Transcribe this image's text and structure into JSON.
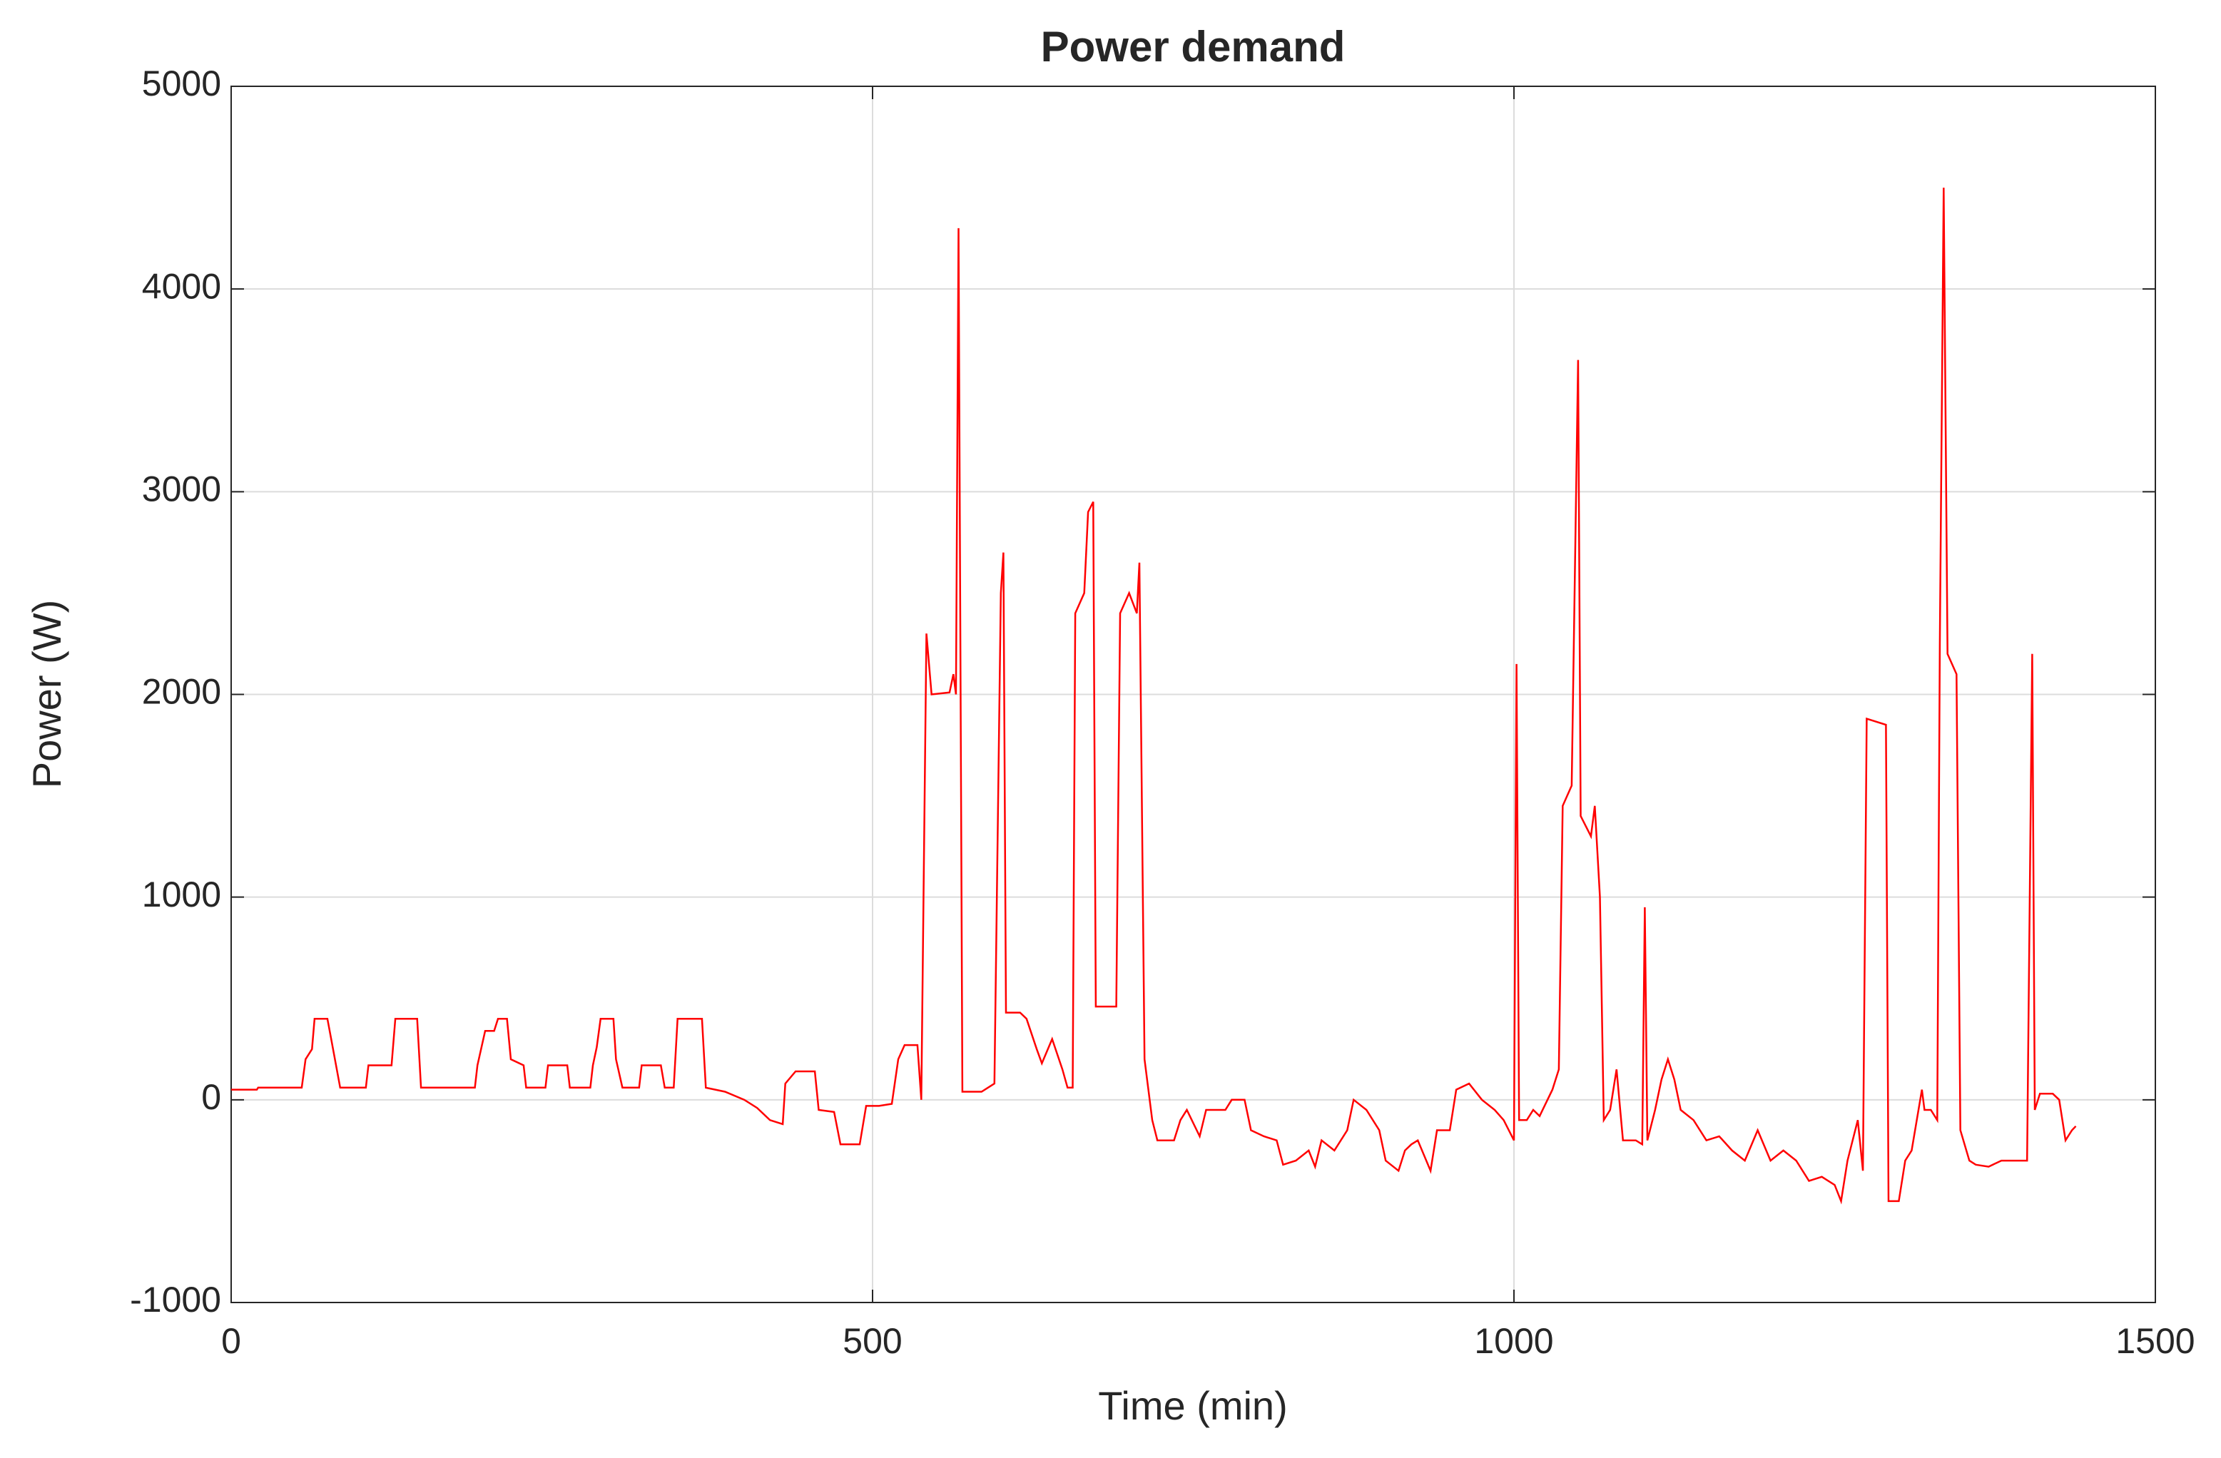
{
  "chart_data": {
    "type": "line",
    "title": "Power demand",
    "x_label": "Time (min)",
    "y_label": "Power (W)",
    "color": "#ff0000",
    "grid": true,
    "xlim": [
      0,
      1500
    ],
    "xticks": [
      0,
      500,
      1000,
      1500
    ],
    "ylim": [
      -1000,
      5000
    ],
    "yticks": [
      -1000,
      0,
      1000,
      2000,
      3000,
      4000,
      5000
    ],
    "x": [
      0,
      20,
      21,
      55,
      58,
      63,
      65,
      75,
      78,
      85,
      105,
      107,
      125,
      128,
      145,
      148,
      190,
      192,
      198,
      205,
      208,
      215,
      218,
      228,
      230,
      245,
      247,
      262,
      264,
      280,
      282,
      285,
      288,
      298,
      300,
      305,
      318,
      320,
      335,
      338,
      345,
      348,
      367,
      370,
      385,
      400,
      410,
      420,
      430,
      432,
      440,
      455,
      458,
      470,
      475,
      490,
      495,
      505,
      515,
      520,
      525,
      535,
      538,
      542,
      546,
      560,
      563,
      565,
      567,
      570,
      585,
      595,
      600,
      602,
      604,
      615,
      620,
      628,
      632,
      640,
      648,
      652,
      656,
      658,
      665,
      668,
      672,
      674,
      690,
      693,
      700,
      706,
      708,
      712,
      718,
      722,
      735,
      740,
      745,
      755,
      760,
      775,
      780,
      790,
      795,
      805,
      815,
      820,
      830,
      840,
      845,
      850,
      860,
      870,
      875,
      885,
      895,
      900,
      910,
      915,
      920,
      925,
      935,
      940,
      950,
      955,
      965,
      975,
      985,
      992,
      1000,
      1002,
      1004,
      1010,
      1015,
      1020,
      1030,
      1035,
      1038,
      1045,
      1050,
      1052,
      1060,
      1063,
      1067,
      1070,
      1075,
      1080,
      1085,
      1095,
      1100,
      1102,
      1104,
      1110,
      1115,
      1120,
      1125,
      1130,
      1140,
      1150,
      1160,
      1170,
      1180,
      1190,
      1200,
      1210,
      1220,
      1230,
      1240,
      1250,
      1255,
      1260,
      1268,
      1272,
      1275,
      1290,
      1292,
      1300,
      1305,
      1310,
      1318,
      1320,
      1325,
      1330,
      1332,
      1335,
      1338,
      1345,
      1348,
      1355,
      1360,
      1370,
      1380,
      1390,
      1400,
      1404,
      1406,
      1410,
      1420,
      1425,
      1430,
      1435,
      1438
    ],
    "values": [
      50,
      50,
      60,
      60,
      200,
      250,
      400,
      400,
      300,
      60,
      60,
      170,
      170,
      400,
      400,
      60,
      60,
      170,
      340,
      340,
      400,
      400,
      200,
      170,
      60,
      60,
      170,
      170,
      60,
      60,
      170,
      260,
      400,
      400,
      200,
      60,
      60,
      170,
      170,
      60,
      60,
      400,
      400,
      60,
      40,
      0,
      -40,
      -100,
      -120,
      80,
      140,
      140,
      -50,
      -60,
      -220,
      -220,
      -30,
      -30,
      -20,
      200,
      270,
      270,
      0,
      2300,
      2000,
      2010,
      2100,
      2000,
      4300,
      40,
      40,
      80,
      2500,
      2700,
      430,
      430,
      400,
      250,
      180,
      300,
      150,
      60,
      60,
      2400,
      2500,
      2900,
      2950,
      460,
      460,
      2400,
      2500,
      2400,
      2650,
      200,
      -100,
      -200,
      -200,
      -100,
      -50,
      -180,
      -50,
      -50,
      0,
      0,
      -150,
      -180,
      -200,
      -320,
      -300,
      -250,
      -330,
      -200,
      -250,
      -150,
      0,
      -50,
      -150,
      -300,
      -350,
      -250,
      -220,
      -200,
      -350,
      -150,
      -150,
      50,
      80,
      0,
      -50,
      -100,
      -200,
      2150,
      -100,
      -100,
      -50,
      -80,
      50,
      150,
      1450,
      1550,
      3650,
      1400,
      1300,
      1450,
      1000,
      -100,
      -50,
      150,
      -200,
      -200,
      -220,
      950,
      -200,
      -50,
      100,
      200,
      100,
      -50,
      -100,
      -200,
      -180,
      -250,
      -300,
      -150,
      -300,
      -250,
      -300,
      -400,
      -380,
      -420,
      -500,
      -300,
      -100,
      -350,
      1880,
      1850,
      -500,
      -500,
      -300,
      -250,
      50,
      -50,
      -50,
      -100,
      2250,
      4500,
      2200,
      2100,
      -150,
      -300,
      -320,
      -330,
      -300,
      -300,
      -300,
      2200,
      -50,
      30,
      30,
      0,
      -200,
      -150,
      -130
    ]
  }
}
